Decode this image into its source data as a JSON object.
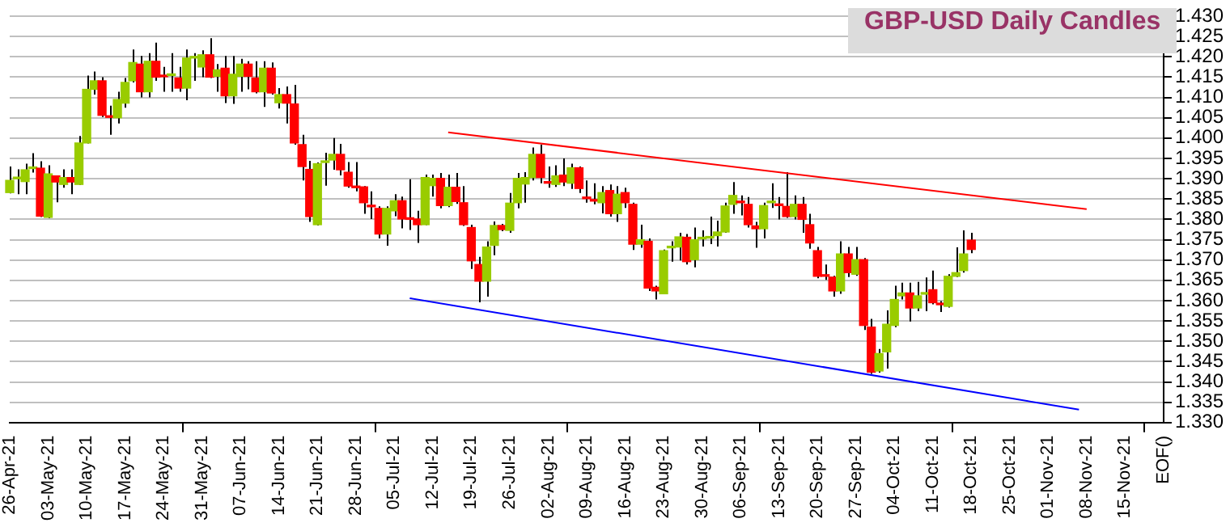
{
  "chart_data": {
    "type": "candlestick",
    "title": "GBP-USD Daily Candles",
    "categories": [
      "26-Apr-21",
      null,
      null,
      null,
      null,
      "03-May-21",
      null,
      null,
      null,
      null,
      "10-May-21",
      null,
      null,
      null,
      null,
      "17-May-21",
      null,
      null,
      null,
      null,
      "24-May-21",
      null,
      null,
      null,
      null,
      "31-May-21",
      null,
      null,
      null,
      null,
      "07-Jun-21",
      null,
      null,
      null,
      null,
      "14-Jun-21",
      null,
      null,
      null,
      null,
      "21-Jun-21",
      null,
      null,
      null,
      null,
      "28-Jun-21",
      null,
      null,
      null,
      null,
      "05-Jul-21",
      null,
      null,
      null,
      null,
      "12-Jul-21",
      null,
      null,
      null,
      null,
      "19-Jul-21",
      null,
      null,
      null,
      null,
      "26-Jul-21",
      null,
      null,
      null,
      null,
      "02-Aug-21",
      null,
      null,
      null,
      null,
      "09-Aug-21",
      null,
      null,
      null,
      null,
      "16-Aug-21",
      null,
      null,
      null,
      null,
      "23-Aug-21",
      null,
      null,
      null,
      null,
      "30-Aug-21",
      null,
      null,
      null,
      null,
      "06-Sep-21",
      null,
      null,
      null,
      null,
      "13-Sep-21",
      null,
      null,
      null,
      null,
      "20-Sep-21",
      null,
      null,
      null,
      null,
      "27-Sep-21",
      null,
      null,
      null,
      null,
      "04-Oct-21",
      null,
      null,
      null,
      null,
      "11-Oct-21",
      null,
      null,
      null,
      null,
      "18-Oct-21",
      null,
      null,
      null,
      null,
      "25-Oct-21",
      null,
      null,
      null,
      null,
      "01-Nov-21",
      null,
      null,
      null,
      null,
      "08-Nov-21",
      null,
      null,
      null,
      null,
      "15-Nov-21",
      null,
      null,
      null,
      null,
      "EOF()"
    ],
    "ohlc": [
      [
        1.3866,
        1.393,
        1.3864,
        1.3896
      ],
      [
        1.39,
        1.3923,
        1.3862,
        1.3902
      ],
      [
        1.3893,
        1.3937,
        1.3862,
        1.3922
      ],
      [
        1.3925,
        1.3963,
        1.3915,
        1.3926
      ],
      [
        1.3926,
        1.3943,
        1.3806,
        1.3808
      ],
      [
        1.3805,
        1.3933,
        1.3803,
        1.3912
      ],
      [
        1.3907,
        1.3907,
        1.3842,
        1.3892
      ],
      [
        1.3886,
        1.3923,
        1.3878,
        1.3903
      ],
      [
        1.3903,
        1.3923,
        1.3862,
        1.3892
      ],
      [
        1.3886,
        1.4005,
        1.3885,
        1.3988
      ],
      [
        1.3988,
        1.4154,
        1.3987,
        1.412
      ],
      [
        1.412,
        1.4164,
        1.4107,
        1.4141
      ],
      [
        1.4141,
        1.415,
        1.4052,
        1.4056
      ],
      [
        1.4053,
        1.408,
        1.4008,
        1.4051
      ],
      [
        1.405,
        1.4114,
        1.4036,
        1.4095
      ],
      [
        1.4086,
        1.4148,
        1.4075,
        1.4137
      ],
      [
        1.4141,
        1.4218,
        1.4137,
        1.4186
      ],
      [
        1.4182,
        1.4202,
        1.41,
        1.4114
      ],
      [
        1.4114,
        1.4209,
        1.41,
        1.4189
      ],
      [
        1.4189,
        1.4235,
        1.4141,
        1.415
      ],
      [
        1.4152,
        1.4175,
        1.4114,
        1.4151
      ],
      [
        1.4154,
        1.4209,
        1.4114,
        1.4155
      ],
      [
        1.4148,
        1.4175,
        1.4114,
        1.4123
      ],
      [
        1.4123,
        1.4218,
        1.4093,
        1.4197
      ],
      [
        1.4197,
        1.4209,
        1.4141,
        1.4198
      ],
      [
        1.4175,
        1.4216,
        1.415,
        1.4205
      ],
      [
        1.4205,
        1.4246,
        1.4148,
        1.415
      ],
      [
        1.4152,
        1.4182,
        1.4114,
        1.4168
      ],
      [
        1.4172,
        1.4202,
        1.4086,
        1.4104
      ],
      [
        1.4104,
        1.4202,
        1.4084,
        1.4157
      ],
      [
        1.4152,
        1.4195,
        1.4114,
        1.4182
      ],
      [
        1.4182,
        1.4189,
        1.412,
        1.4152
      ],
      [
        1.4148,
        1.4189,
        1.411,
        1.4114
      ],
      [
        1.4114,
        1.4189,
        1.4077,
        1.4172
      ],
      [
        1.4172,
        1.4186,
        1.4107,
        1.4111
      ],
      [
        1.4087,
        1.4123,
        1.4073,
        1.4107
      ],
      [
        1.4107,
        1.4127,
        1.4036,
        1.4086
      ],
      [
        1.4084,
        1.4131,
        1.3984,
        1.3988
      ],
      [
        1.3984,
        1.4008,
        1.3896,
        1.393
      ],
      [
        1.3923,
        1.3944,
        1.3794,
        1.3807
      ],
      [
        1.3787,
        1.394,
        1.3785,
        1.3937
      ],
      [
        1.394,
        1.3964,
        1.3883,
        1.3942
      ],
      [
        1.3946,
        1.4,
        1.3922,
        1.396
      ],
      [
        1.396,
        1.3986,
        1.3908,
        1.3922
      ],
      [
        1.3916,
        1.3941,
        1.3878,
        1.3882
      ],
      [
        1.3879,
        1.3941,
        1.3869,
        1.3878
      ],
      [
        1.388,
        1.3882,
        1.3814,
        1.3841
      ],
      [
        1.3832,
        1.3869,
        1.3801,
        1.3831
      ],
      [
        1.3827,
        1.3832,
        1.3753,
        1.3764
      ],
      [
        1.3764,
        1.3832,
        1.3735,
        1.3827
      ],
      [
        1.3821,
        1.3862,
        1.3808,
        1.3846
      ],
      [
        1.3846,
        1.3856,
        1.3778,
        1.3801
      ],
      [
        1.3802,
        1.3899,
        1.3774,
        1.38
      ],
      [
        1.3801,
        1.3821,
        1.3742,
        1.3787
      ],
      [
        1.3787,
        1.391,
        1.3786,
        1.3903
      ],
      [
        1.3883,
        1.391,
        1.3856,
        1.3901
      ],
      [
        1.3901,
        1.3914,
        1.3827,
        1.3834
      ],
      [
        1.3834,
        1.391,
        1.383,
        1.3879
      ],
      [
        1.3879,
        1.3914,
        1.3838,
        1.3844
      ],
      [
        1.3841,
        1.3882,
        1.3784,
        1.3787
      ],
      [
        1.378,
        1.3787,
        1.3678,
        1.3698
      ],
      [
        1.3689,
        1.3708,
        1.3596,
        1.3648
      ],
      [
        1.3648,
        1.3746,
        1.361,
        1.3732
      ],
      [
        1.3736,
        1.3795,
        1.3712,
        1.3785
      ],
      [
        1.3785,
        1.3789,
        1.3771,
        1.3775
      ],
      [
        1.3773,
        1.3865,
        1.3767,
        1.384
      ],
      [
        1.3841,
        1.3914,
        1.3827,
        1.3901
      ],
      [
        1.3887,
        1.3916,
        1.3841,
        1.3903
      ],
      [
        1.3903,
        1.3977,
        1.3896,
        1.396
      ],
      [
        1.396,
        1.3984,
        1.3889,
        1.3903
      ],
      [
        1.3891,
        1.393,
        1.3878,
        1.3889
      ],
      [
        1.3886,
        1.3933,
        1.388,
        1.3907
      ],
      [
        1.3909,
        1.395,
        1.3882,
        1.3892
      ],
      [
        1.3889,
        1.3937,
        1.3875,
        1.3927
      ],
      [
        1.3927,
        1.393,
        1.3865,
        1.3876
      ],
      [
        1.3852,
        1.3896,
        1.3841,
        1.3851
      ],
      [
        1.3846,
        1.3889,
        1.3837,
        1.3845
      ],
      [
        1.3841,
        1.3882,
        1.3815,
        1.3866
      ],
      [
        1.3871,
        1.3886,
        1.3807,
        1.3814
      ],
      [
        1.3814,
        1.3882,
        1.3794,
        1.3862
      ],
      [
        1.3866,
        1.3878,
        1.3828,
        1.3841
      ],
      [
        1.3837,
        1.3841,
        1.3725,
        1.3739
      ],
      [
        1.3739,
        1.3787,
        1.373,
        1.375
      ],
      [
        1.3746,
        1.3753,
        1.3624,
        1.3631
      ],
      [
        1.3633,
        1.3637,
        1.3603,
        1.3624
      ],
      [
        1.3617,
        1.3726,
        1.3617,
        1.3723
      ],
      [
        1.373,
        1.3746,
        1.3696,
        1.3731
      ],
      [
        1.3732,
        1.3767,
        1.3699,
        1.3757
      ],
      [
        1.3756,
        1.3764,
        1.3689,
        1.3696
      ],
      [
        1.3701,
        1.378,
        1.3682,
        1.375
      ],
      [
        1.3752,
        1.3773,
        1.3733,
        1.3753
      ],
      [
        1.3754,
        1.3807,
        1.3739,
        1.3756
      ],
      [
        1.376,
        1.3797,
        1.3733,
        1.3769
      ],
      [
        1.3769,
        1.3841,
        1.3767,
        1.3833
      ],
      [
        1.3837,
        1.3892,
        1.3814,
        1.3859
      ],
      [
        1.3842,
        1.3859,
        1.381,
        1.3841
      ],
      [
        1.3837,
        1.3855,
        1.378,
        1.3787
      ],
      [
        1.3784,
        1.3794,
        1.373,
        1.3777
      ],
      [
        1.3777,
        1.3841,
        1.3753,
        1.3834
      ],
      [
        1.3841,
        1.3889,
        1.3828,
        1.3842
      ],
      [
        1.3835,
        1.3855,
        1.38,
        1.3834
      ],
      [
        1.3832,
        1.3916,
        1.3804,
        1.3807
      ],
      [
        1.3807,
        1.3859,
        1.38,
        1.3837
      ],
      [
        1.3837,
        1.3855,
        1.3767,
        1.38
      ],
      [
        1.3787,
        1.3814,
        1.3728,
        1.3742
      ],
      [
        1.3723,
        1.3732,
        1.3655,
        1.366
      ],
      [
        1.3661,
        1.3689,
        1.3651,
        1.366
      ],
      [
        1.3658,
        1.3661,
        1.361,
        1.3624
      ],
      [
        1.3624,
        1.3746,
        1.3617,
        1.3715
      ],
      [
        1.3715,
        1.3732,
        1.3658,
        1.3669
      ],
      [
        1.3665,
        1.3732,
        1.3661,
        1.3701
      ],
      [
        1.3701,
        1.3705,
        1.3528,
        1.3539
      ],
      [
        1.3535,
        1.3555,
        1.342,
        1.3424
      ],
      [
        1.3427,
        1.3481,
        1.3423,
        1.347
      ],
      [
        1.3474,
        1.3576,
        1.3433,
        1.3542
      ],
      [
        1.3539,
        1.3637,
        1.3535,
        1.3603
      ],
      [
        1.3612,
        1.3644,
        1.3603,
        1.3619
      ],
      [
        1.3619,
        1.3644,
        1.3549,
        1.3582
      ],
      [
        1.3582,
        1.3646,
        1.3574,
        1.3612
      ],
      [
        1.3616,
        1.3657,
        1.3574,
        1.3617
      ],
      [
        1.3627,
        1.3674,
        1.3591,
        1.3595
      ],
      [
        1.3591,
        1.3599,
        1.3572,
        1.359
      ],
      [
        1.3586,
        1.3665,
        1.3583,
        1.366
      ],
      [
        1.366,
        1.3731,
        1.3658,
        1.3669
      ],
      [
        1.3674,
        1.3773,
        1.3669,
        1.3715
      ],
      [
        1.3749,
        1.3767,
        1.3717,
        1.3726
      ],
      null,
      null,
      null,
      null,
      null,
      null,
      null,
      null,
      null,
      null,
      null,
      null,
      null,
      null,
      null,
      null,
      null,
      null,
      null,
      null,
      null,
      null,
      null,
      null,
      null
    ],
    "colors": [
      "#99cc00",
      "#99cc00",
      "#99cc00",
      "#99cc00",
      "#ff0000",
      "#99cc00",
      "#ff0000",
      "#99cc00",
      "#ff0000",
      "#99cc00",
      "#99cc00",
      "#99cc00",
      "#ff0000",
      "#ff0000",
      "#99cc00",
      "#99cc00",
      "#99cc00",
      "#ff0000",
      "#99cc00",
      "#ff0000",
      "#ff0000",
      "#99cc00",
      "#ff0000",
      "#99cc00",
      "#99cc00",
      "#99cc00",
      "#ff0000",
      "#99cc00",
      "#ff0000",
      "#99cc00",
      "#99cc00",
      "#ff0000",
      "#ff0000",
      "#99cc00",
      "#ff0000",
      "#99cc00",
      "#ff0000",
      "#ff0000",
      "#ff0000",
      "#ff0000",
      "#99cc00",
      "#99cc00",
      "#99cc00",
      "#ff0000",
      "#ff0000",
      "#ff0000",
      "#ff0000",
      "#ff0000",
      "#ff0000",
      "#99cc00",
      "#99cc00",
      "#ff0000",
      "#ff0000",
      "#ff0000",
      "#99cc00",
      "#99cc00",
      "#ff0000",
      "#99cc00",
      "#ff0000",
      "#ff0000",
      "#ff0000",
      "#ff0000",
      "#99cc00",
      "#99cc00",
      "#ff0000",
      "#99cc00",
      "#99cc00",
      "#99cc00",
      "#99cc00",
      "#ff0000",
      "#ff0000",
      "#99cc00",
      "#ff0000",
      "#99cc00",
      "#ff0000",
      "#ff0000",
      "#ff0000",
      "#99cc00",
      "#ff0000",
      "#99cc00",
      "#ff0000",
      "#ff0000",
      "#99cc00",
      "#ff0000",
      "#ff0000",
      "#99cc00",
      "#99cc00",
      "#99cc00",
      "#ff0000",
      "#99cc00",
      "#99cc00",
      "#99cc00",
      "#99cc00",
      "#99cc00",
      "#99cc00",
      "#ff0000",
      "#ff0000",
      "#ff0000",
      "#99cc00",
      "#99cc00",
      "#ff0000",
      "#ff0000",
      "#99cc00",
      "#ff0000",
      "#ff0000",
      "#ff0000",
      "#ff0000",
      "#ff0000",
      "#99cc00",
      "#ff0000",
      "#99cc00",
      "#ff0000",
      "#ff0000",
      "#99cc00",
      "#99cc00",
      "#99cc00",
      "#99cc00",
      "#ff0000",
      "#99cc00",
      "#99cc00",
      "#ff0000",
      "#ff0000",
      "#99cc00",
      "#99cc00",
      "#99cc00",
      "#ff0000",
      null,
      null,
      null,
      null,
      null,
      null,
      null,
      null,
      null,
      null,
      null,
      null,
      null,
      null,
      null,
      null,
      null,
      null,
      null,
      null,
      null,
      null,
      null,
      null,
      null
    ],
    "series": [
      {
        "type": "line",
        "color": "#ff0000",
        "values": [
          null,
          null,
          null,
          null,
          null,
          null,
          null,
          null,
          null,
          null,
          null,
          null,
          null,
          null,
          null,
          null,
          null,
          null,
          null,
          null,
          null,
          null,
          null,
          null,
          null,
          null,
          null,
          null,
          null,
          null,
          null,
          null,
          null,
          null,
          null,
          null,
          null,
          null,
          null,
          null,
          null,
          null,
          null,
          null,
          null,
          null,
          null,
          null,
          null,
          null,
          null,
          null,
          null,
          null,
          null,
          null,
          null,
          1.4014,
          null,
          null,
          null,
          null,
          null,
          null,
          null,
          null,
          null,
          null,
          null,
          null,
          null,
          null,
          null,
          null,
          null,
          null,
          null,
          null,
          null,
          null,
          null,
          null,
          null,
          null,
          null,
          null,
          null,
          null,
          null,
          null,
          null,
          null,
          null,
          null,
          null,
          null,
          null,
          null,
          null,
          null,
          null,
          null,
          null,
          null,
          null,
          null,
          null,
          null,
          null,
          null,
          null,
          null,
          null,
          null,
          null,
          null,
          null,
          null,
          null,
          null,
          null,
          null,
          null,
          null,
          null,
          null,
          null,
          null,
          null,
          null,
          null,
          null,
          null,
          null,
          null,
          null,
          null,
          null,
          null,
          null,
          1.3825,
          null,
          null,
          null,
          null,
          null,
          null,
          null,
          null,
          null,
          null
        ]
      },
      {
        "type": "line",
        "color": "#0000ff",
        "values": [
          null,
          null,
          null,
          null,
          null,
          null,
          null,
          null,
          null,
          null,
          null,
          null,
          null,
          null,
          null,
          null,
          null,
          null,
          null,
          null,
          null,
          null,
          null,
          null,
          null,
          null,
          null,
          null,
          null,
          null,
          null,
          null,
          null,
          null,
          null,
          null,
          null,
          null,
          null,
          null,
          null,
          null,
          null,
          null,
          null,
          null,
          null,
          null,
          null,
          null,
          null,
          null,
          1.3606,
          null,
          null,
          null,
          null,
          null,
          null,
          null,
          null,
          null,
          null,
          null,
          null,
          null,
          null,
          null,
          null,
          null,
          null,
          null,
          null,
          null,
          null,
          null,
          null,
          null,
          null,
          null,
          null,
          null,
          null,
          null,
          null,
          null,
          null,
          null,
          null,
          null,
          null,
          null,
          null,
          null,
          null,
          null,
          null,
          null,
          null,
          null,
          null,
          null,
          null,
          null,
          null,
          null,
          null,
          null,
          null,
          null,
          null,
          null,
          null,
          null,
          null,
          null,
          null,
          null,
          null,
          null,
          null,
          null,
          null,
          null,
          null,
          null,
          null,
          null,
          null,
          null,
          null,
          null,
          null,
          null,
          null,
          null,
          null,
          null,
          null,
          1.3332,
          null,
          null,
          null,
          null,
          null,
          null,
          null,
          null,
          null,
          null,
          null
        ]
      }
    ],
    "ylim": [
      1.33,
      1.43
    ],
    "yticks": [
      {
        "value": 1.33,
        "label": "1.330"
      },
      {
        "value": 1.335,
        "label": "1.335"
      },
      {
        "value": 1.34,
        "label": "1.340"
      },
      {
        "value": 1.345,
        "label": "1.345"
      },
      {
        "value": 1.35,
        "label": "1.350"
      },
      {
        "value": 1.355,
        "label": "1.355"
      },
      {
        "value": 1.36,
        "label": "1.360"
      },
      {
        "value": 1.365,
        "label": "1.365"
      },
      {
        "value": 1.37,
        "label": "1.370"
      },
      {
        "value": 1.375,
        "label": "1.375"
      },
      {
        "value": 1.38,
        "label": "1.380"
      },
      {
        "value": 1.385,
        "label": "1.385"
      },
      {
        "value": 1.39,
        "label": "1.390"
      },
      {
        "value": 1.395,
        "label": "1.395"
      },
      {
        "value": 1.4,
        "label": "1.400"
      },
      {
        "value": 1.405,
        "label": "1.405"
      },
      {
        "value": 1.41,
        "label": "1.410"
      },
      {
        "value": 1.415,
        "label": "1.415"
      },
      {
        "value": 1.42,
        "label": "1.420"
      },
      {
        "value": 1.425,
        "label": "1.425"
      },
      {
        "value": 1.43,
        "label": "1.430"
      }
    ],
    "grid": "y",
    "legend": false,
    "marker": "none"
  }
}
